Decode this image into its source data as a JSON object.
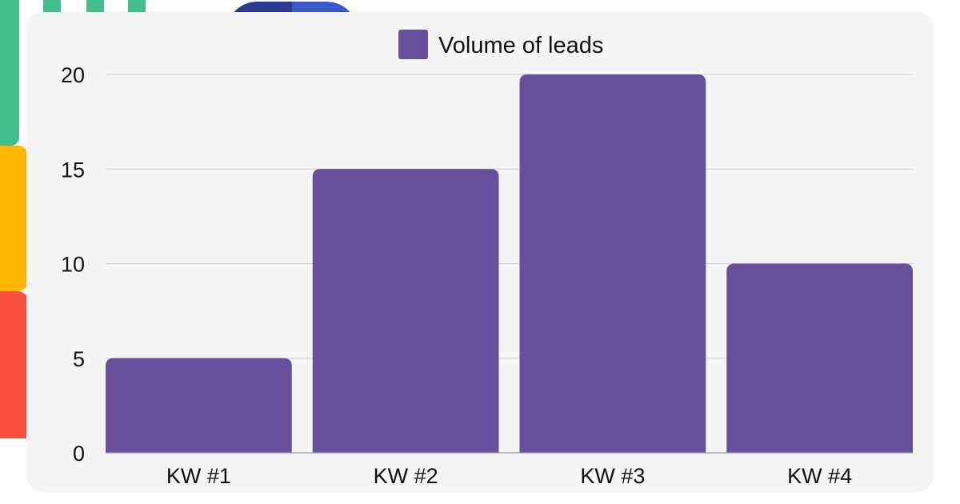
{
  "colors": {
    "bar": "#66509b",
    "grid": "#cfcfcf",
    "axis": "#9a9a9a",
    "card": "#f5f5f5",
    "deco_green": "#43bf8b",
    "deco_yellow": "#ffb703",
    "deco_red": "#fb5240",
    "deco_blue": "#3a58c9",
    "deco_navy": "#2a3a8e"
  },
  "chart_data": {
    "type": "bar",
    "categories": [
      "KW #1",
      "KW #2",
      "KW #3",
      "KW #4"
    ],
    "series": [
      {
        "name": "Volume of leads",
        "values": [
          5,
          15,
          20,
          10
        ]
      }
    ],
    "yticks": [
      "0",
      "5",
      "10",
      "15",
      "20"
    ],
    "ylim": [
      0,
      20
    ],
    "grid": true,
    "legend": "top-center"
  }
}
